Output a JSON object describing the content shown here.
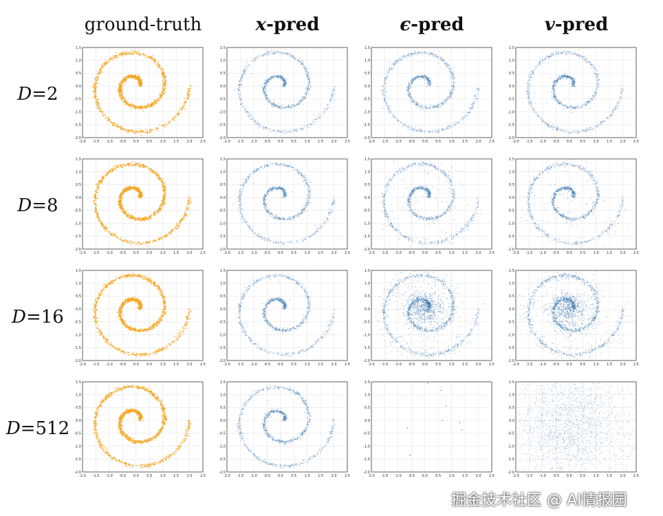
{
  "columns": [
    {
      "symbol": "",
      "suffix": "ground-truth"
    },
    {
      "symbol": "x",
      "suffix": "-pred"
    },
    {
      "symbol": "ϵ",
      "suffix": "-pred"
    },
    {
      "symbol": "v",
      "suffix": "-pred"
    }
  ],
  "rows": [
    {
      "prefix": "D",
      "value": "=2"
    },
    {
      "prefix": "D",
      "value": "=8"
    },
    {
      "prefix": "D",
      "value": "=16"
    },
    {
      "prefix": "D",
      "value": "=512"
    }
  ],
  "watermark": "掘金技术社区 @ AI情报园",
  "colors": {
    "ground_truth": "#f5a623",
    "prediction": "#3a76b0",
    "grid": "#e4e4e4",
    "axis": "#222222"
  },
  "chart_data": {
    "type": "scatter",
    "layout": "4x4 grid",
    "xlim": [
      -2.0,
      2.5
    ],
    "ylim": [
      -2.0,
      1.5
    ],
    "xticks": [
      "-2.0",
      "-1.5",
      "-1.0",
      "-0.5",
      "0.0",
      "0.5",
      "1.0",
      "1.5",
      "2.0",
      "2.5"
    ],
    "yticks": [
      "1.5",
      "1.0",
      "0.5",
      "0.0",
      "-0.5",
      "-1.0",
      "-1.5",
      "-2.0"
    ],
    "grid": true,
    "panels": [
      {
        "row": 0,
        "col": 0,
        "pattern": "spiral"
      },
      {
        "row": 0,
        "col": 1,
        "pattern": "spiral"
      },
      {
        "row": 0,
        "col": 2,
        "pattern": "spiral"
      },
      {
        "row": 0,
        "col": 3,
        "pattern": "spiral"
      },
      {
        "row": 1,
        "col": 0,
        "pattern": "spiral"
      },
      {
        "row": 1,
        "col": 1,
        "pattern": "spiral"
      },
      {
        "row": 1,
        "col": 2,
        "pattern": "spiral with scattered outliers"
      },
      {
        "row": 1,
        "col": 3,
        "pattern": "spiral with scattered outliers"
      },
      {
        "row": 2,
        "col": 0,
        "pattern": "spiral"
      },
      {
        "row": 2,
        "col": 1,
        "pattern": "spiral"
      },
      {
        "row": 2,
        "col": 2,
        "pattern": "noisy spiral with central blob"
      },
      {
        "row": 2,
        "col": 3,
        "pattern": "noisy spiral with central blob"
      },
      {
        "row": 3,
        "col": 0,
        "pattern": "spiral"
      },
      {
        "row": 3,
        "col": 1,
        "pattern": "spiral"
      },
      {
        "row": 3,
        "col": 2,
        "pattern": "sparse points",
        "points": [
          [
            0.1,
            1.45
          ],
          [
            0.6,
            1.17
          ],
          [
            0.8,
            0.57
          ],
          [
            0.65,
            0.0
          ],
          [
            1.3,
            -0.08
          ],
          [
            1.38,
            -0.37
          ],
          [
            -0.65,
            -0.28
          ],
          [
            -0.55,
            -1.35
          ]
        ]
      },
      {
        "row": 3,
        "col": 3,
        "pattern": "diffuse gaussian noise"
      }
    ]
  }
}
